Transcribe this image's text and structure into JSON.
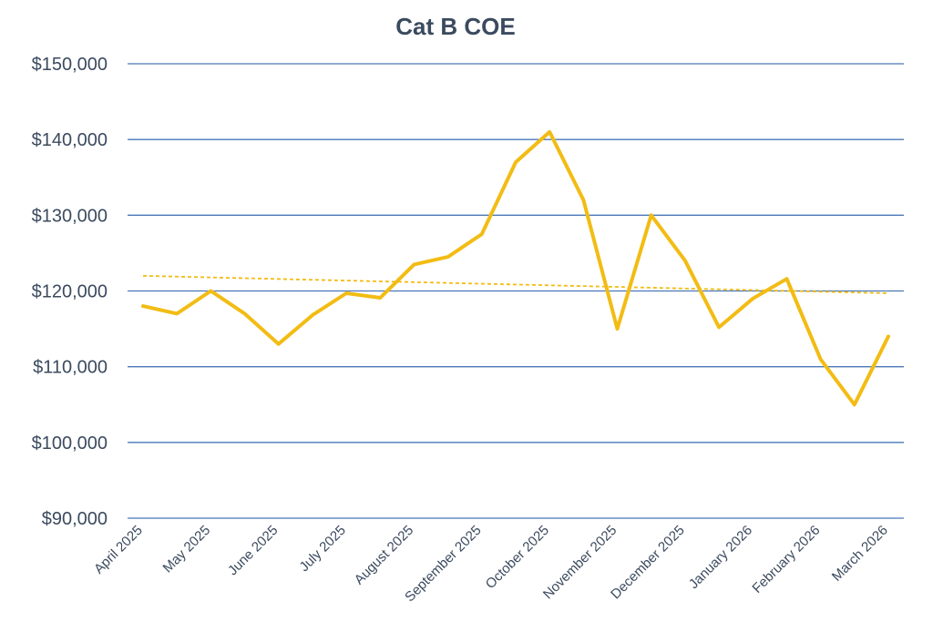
{
  "chart_data": {
    "type": "line",
    "title": "Cat B COE",
    "xlabel": "",
    "ylabel": "",
    "ylim": [
      90000,
      150000
    ],
    "yticks": [
      90000,
      100000,
      110000,
      120000,
      130000,
      140000,
      150000
    ],
    "ytick_labels": [
      "$90,000",
      "$100,000",
      "$110,000",
      "$120,000",
      "$130,000",
      "$140,000",
      "$150,000"
    ],
    "x_tick_labels": [
      "April 2025",
      "May 2025",
      "June 2025",
      "July 2025",
      "August 2025",
      "September 2025",
      "October 2025",
      "November 2025",
      "December 2025",
      "January 2026",
      "February 2026",
      "March 2026"
    ],
    "series": [
      {
        "values": [
          118000,
          117000,
          120000,
          117000,
          113000,
          116800,
          119700,
          119100,
          123500,
          124500,
          127500,
          137000,
          141000,
          132000,
          115000,
          130000,
          124000,
          115200,
          119000,
          121600,
          111000,
          105000,
          114000
        ],
        "color": "#f2bc14"
      }
    ],
    "trendline": {
      "start": 122000,
      "end": 119700,
      "style": "dashed",
      "color": "#f2bc14"
    },
    "grid": true,
    "legend": "none"
  }
}
